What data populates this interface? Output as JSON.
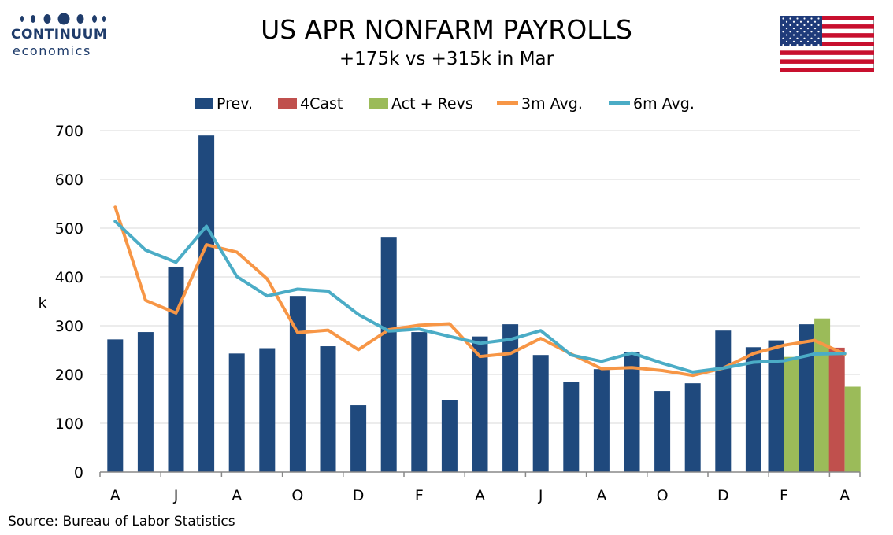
{
  "header": {
    "brand": "CONTINUUM",
    "brand_sub": "economics",
    "title": "US APR NONFARM PAYROLLS",
    "subtitle": "+175k vs +315k in Mar"
  },
  "flag": {
    "name": "us-flag-icon"
  },
  "source": "Source: Bureau of Labor Statistics",
  "colors": {
    "prev": "#1f497d",
    "forecast": "#c0504d",
    "actual": "#9bbb59",
    "avg3": "#f79646",
    "avg6": "#4bacc6",
    "grid": "#d9d9d9",
    "brand": "#1f3c6b"
  },
  "chart_data": {
    "type": "bar",
    "ylabel": "k",
    "ylim": [
      0,
      700
    ],
    "yticks": [
      0,
      100,
      200,
      300,
      400,
      500,
      600,
      700
    ],
    "xtick_labels": [
      "A",
      "J",
      "A",
      "O",
      "D",
      "F",
      "A",
      "J",
      "A",
      "O",
      "D",
      "F",
      "A"
    ],
    "grid": true,
    "legend_position": "top",
    "legend": [
      "Prev.",
      "4Cast",
      "Act + Revs",
      "3m Avg.",
      "6m Avg."
    ],
    "series": [
      {
        "name": "Prev.",
        "kind": "bar",
        "values": [
          272,
          287,
          421,
          690,
          243,
          254,
          361,
          258,
          137,
          482,
          287,
          147,
          278,
          303,
          240,
          184,
          211,
          246,
          166,
          182,
          290,
          256,
          270,
          303
        ]
      },
      {
        "name": "Act + Revs",
        "kind": "bar",
        "values": [
          null,
          null,
          null,
          null,
          null,
          null,
          null,
          null,
          null,
          null,
          null,
          null,
          null,
          null,
          null,
          null,
          null,
          null,
          null,
          null,
          null,
          null,
          236,
          315,
          175
        ]
      },
      {
        "name": "4Cast",
        "kind": "bar",
        "values": [
          null,
          null,
          null,
          null,
          null,
          null,
          null,
          null,
          null,
          null,
          null,
          null,
          null,
          null,
          null,
          null,
          null,
          null,
          null,
          null,
          null,
          null,
          null,
          null,
          255
        ]
      },
      {
        "name": "3m Avg.",
        "kind": "line",
        "values": [
          543,
          352,
          326,
          466,
          451,
          396,
          286,
          291,
          251,
          292,
          301,
          304,
          237,
          243,
          274,
          242,
          212,
          214,
          208,
          198,
          213,
          243,
          260,
          270,
          242
        ]
      },
      {
        "name": "6m Avg.",
        "kind": "line",
        "values": [
          514,
          455,
          430,
          504,
          401,
          361,
          375,
          371,
          323,
          289,
          293,
          278,
          264,
          272,
          290,
          240,
          227,
          244,
          223,
          205,
          213,
          225,
          228,
          242,
          243
        ]
      }
    ]
  }
}
